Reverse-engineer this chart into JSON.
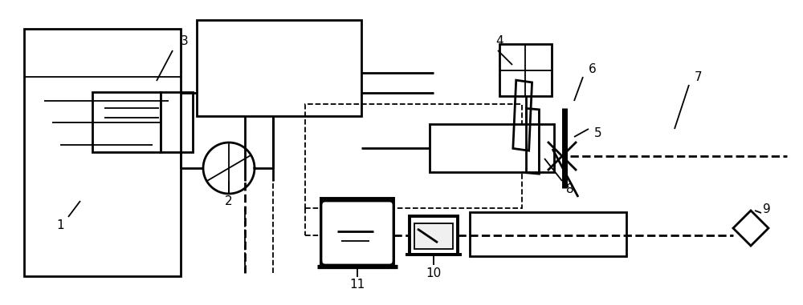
{
  "bg_color": "#ffffff",
  "lc": "#000000",
  "lw": 1.3,
  "lw2": 2.0,
  "lw3": 2.8,
  "fig_w": 10.0,
  "fig_h": 3.81,
  "dpi": 100
}
